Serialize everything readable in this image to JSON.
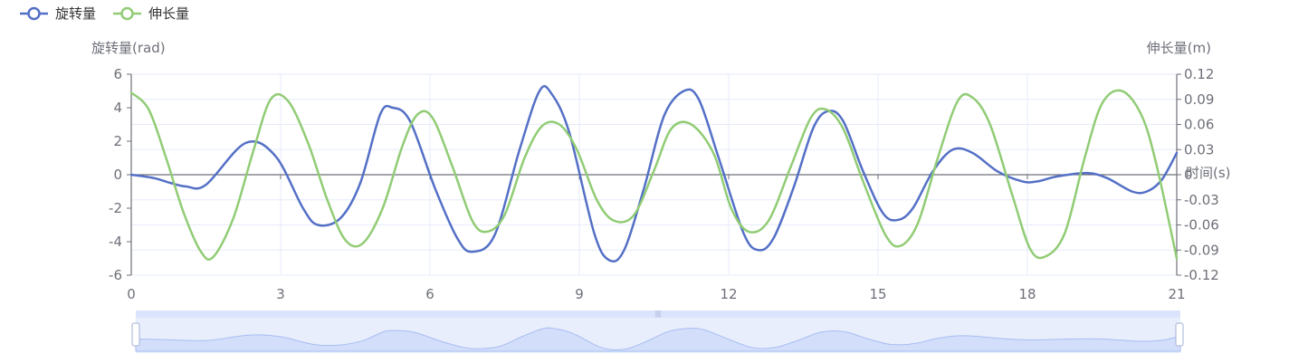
{
  "chart_data": {
    "type": "line",
    "legend": {
      "position": "top-left",
      "items": [
        {
          "name": "旋转量",
          "color": "#5470c6"
        },
        {
          "name": "伸长量",
          "color": "#91cc75"
        }
      ]
    },
    "x_axis": {
      "name": "时间(s)",
      "range": [
        0,
        21
      ],
      "ticks": [
        "0",
        "3",
        "6",
        "9",
        "12",
        "15",
        "18",
        "21"
      ]
    },
    "y_axis_left": {
      "name": "旋转量(rad)",
      "range": [
        -6,
        6
      ],
      "ticks": [
        "-6",
        "-4",
        "-2",
        "0",
        "2",
        "4",
        "6"
      ]
    },
    "y_axis_right": {
      "name": "伸长量(m)",
      "range": [
        -0.12,
        0.12
      ],
      "ticks": [
        "-0.12",
        "-0.09",
        "-0.06",
        "-0.03",
        "0",
        "0.03",
        "0.06",
        "0.09",
        "0.12"
      ]
    },
    "grid": true,
    "series": [
      {
        "name": "旋转量",
        "axis": "left",
        "color": "#5470c6",
        "x": [
          0,
          0.45,
          0.8,
          1.1,
          1.5,
          2.3,
          2.9,
          3.45,
          3.75,
          4.2,
          4.6,
          5.0,
          5.25,
          5.6,
          6.1,
          6.55,
          6.85,
          7.3,
          7.8,
          8.2,
          8.45,
          8.8,
          9.3,
          9.6,
          9.9,
          10.3,
          10.7,
          11.1,
          11.4,
          11.8,
          12.3,
          12.6,
          12.9,
          13.3,
          13.7,
          14.0,
          14.3,
          14.7,
          15.1,
          15.4,
          15.7,
          16.1,
          16.5,
          16.9,
          17.4,
          17.9,
          18.2,
          18.6,
          19.2,
          19.6,
          20.1,
          20.4,
          20.7,
          21
        ],
        "y": [
          0,
          -0.2,
          -0.5,
          -0.7,
          -0.6,
          1.9,
          1.1,
          -2.0,
          -3.0,
          -2.6,
          -0.5,
          3.6,
          4.0,
          3.2,
          -0.8,
          -3.8,
          -4.6,
          -3.6,
          1.5,
          5.0,
          4.8,
          2.5,
          -3.5,
          -5.1,
          -4.5,
          -0.8,
          3.5,
          5.0,
          4.5,
          1.0,
          -3.5,
          -4.5,
          -3.8,
          -0.8,
          2.8,
          3.8,
          3.2,
          0.2,
          -2.3,
          -2.7,
          -2.0,
          0.2,
          1.5,
          1.3,
          0.2,
          -0.4,
          -0.4,
          -0.1,
          0.1,
          -0.2,
          -1.0,
          -1.0,
          -0.3,
          1.3
        ]
      },
      {
        "name": "伸长量",
        "axis": "right",
        "color": "#91cc75",
        "x": [
          0,
          0.35,
          0.7,
          1.05,
          1.4,
          1.65,
          2.05,
          2.45,
          2.8,
          3.15,
          3.55,
          3.95,
          4.3,
          4.65,
          5.05,
          5.45,
          5.75,
          6.05,
          6.45,
          6.85,
          7.15,
          7.5,
          7.9,
          8.25,
          8.6,
          8.95,
          9.35,
          9.7,
          10.1,
          10.5,
          10.85,
          11.25,
          11.7,
          12.05,
          12.4,
          12.8,
          13.25,
          13.65,
          13.95,
          14.3,
          14.7,
          15.15,
          15.45,
          15.8,
          16.2,
          16.6,
          16.9,
          17.25,
          17.7,
          18.05,
          18.35,
          18.75,
          19.15,
          19.5,
          19.9,
          20.3,
          20.6,
          21
        ],
        "y": [
          0.098,
          0.078,
          0.02,
          -0.045,
          -0.092,
          -0.098,
          -0.052,
          0.028,
          0.09,
          0.088,
          0.038,
          -0.032,
          -0.078,
          -0.082,
          -0.04,
          0.035,
          0.072,
          0.068,
          0.01,
          -0.055,
          -0.068,
          -0.048,
          0.02,
          0.058,
          0.06,
          0.03,
          -0.03,
          -0.055,
          -0.048,
          0.005,
          0.055,
          0.06,
          0.025,
          -0.04,
          -0.068,
          -0.055,
          0.01,
          0.068,
          0.078,
          0.055,
          -0.008,
          -0.072,
          -0.085,
          -0.058,
          0.02,
          0.088,
          0.092,
          0.06,
          -0.025,
          -0.088,
          -0.098,
          -0.07,
          0.02,
          0.085,
          0.1,
          0.07,
          0.01,
          -0.1
        ]
      }
    ],
    "data_zoom": {
      "start": 0,
      "end": 100
    }
  }
}
